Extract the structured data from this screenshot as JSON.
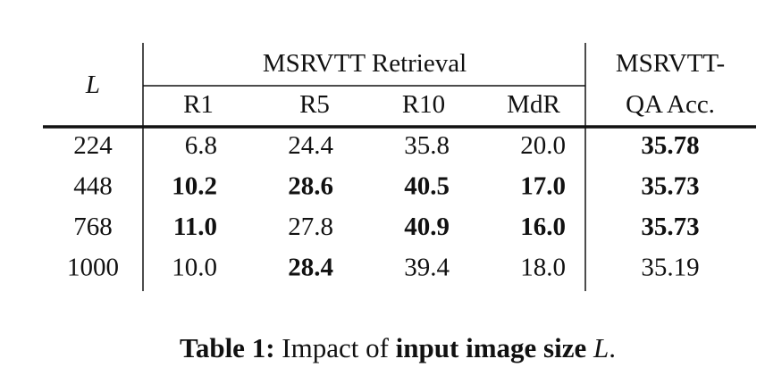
{
  "header": {
    "L": "L",
    "group": "MSRVTT Retrieval",
    "qa": [
      "MSRVTT-",
      "QA Acc."
    ],
    "columns": [
      "R1",
      "R5",
      "R10",
      "MdR"
    ]
  },
  "table": {
    "rows": [
      [
        "224",
        "6.8",
        "24.4",
        "35.8",
        "20.0",
        "35.78"
      ],
      [
        "448",
        "10.2",
        "28.6",
        "40.5",
        "17.0",
        "35.73"
      ],
      [
        "768",
        "11.0",
        "27.8",
        "40.9",
        "16.0",
        "35.73"
      ],
      [
        "1000",
        "10.0",
        "28.4",
        "39.4",
        "18.0",
        "35.19"
      ]
    ]
  },
  "caption": {
    "label": "Table 1:",
    "text": "Impact of",
    "bold": "input image size",
    "var": "L",
    "end": "."
  }
}
